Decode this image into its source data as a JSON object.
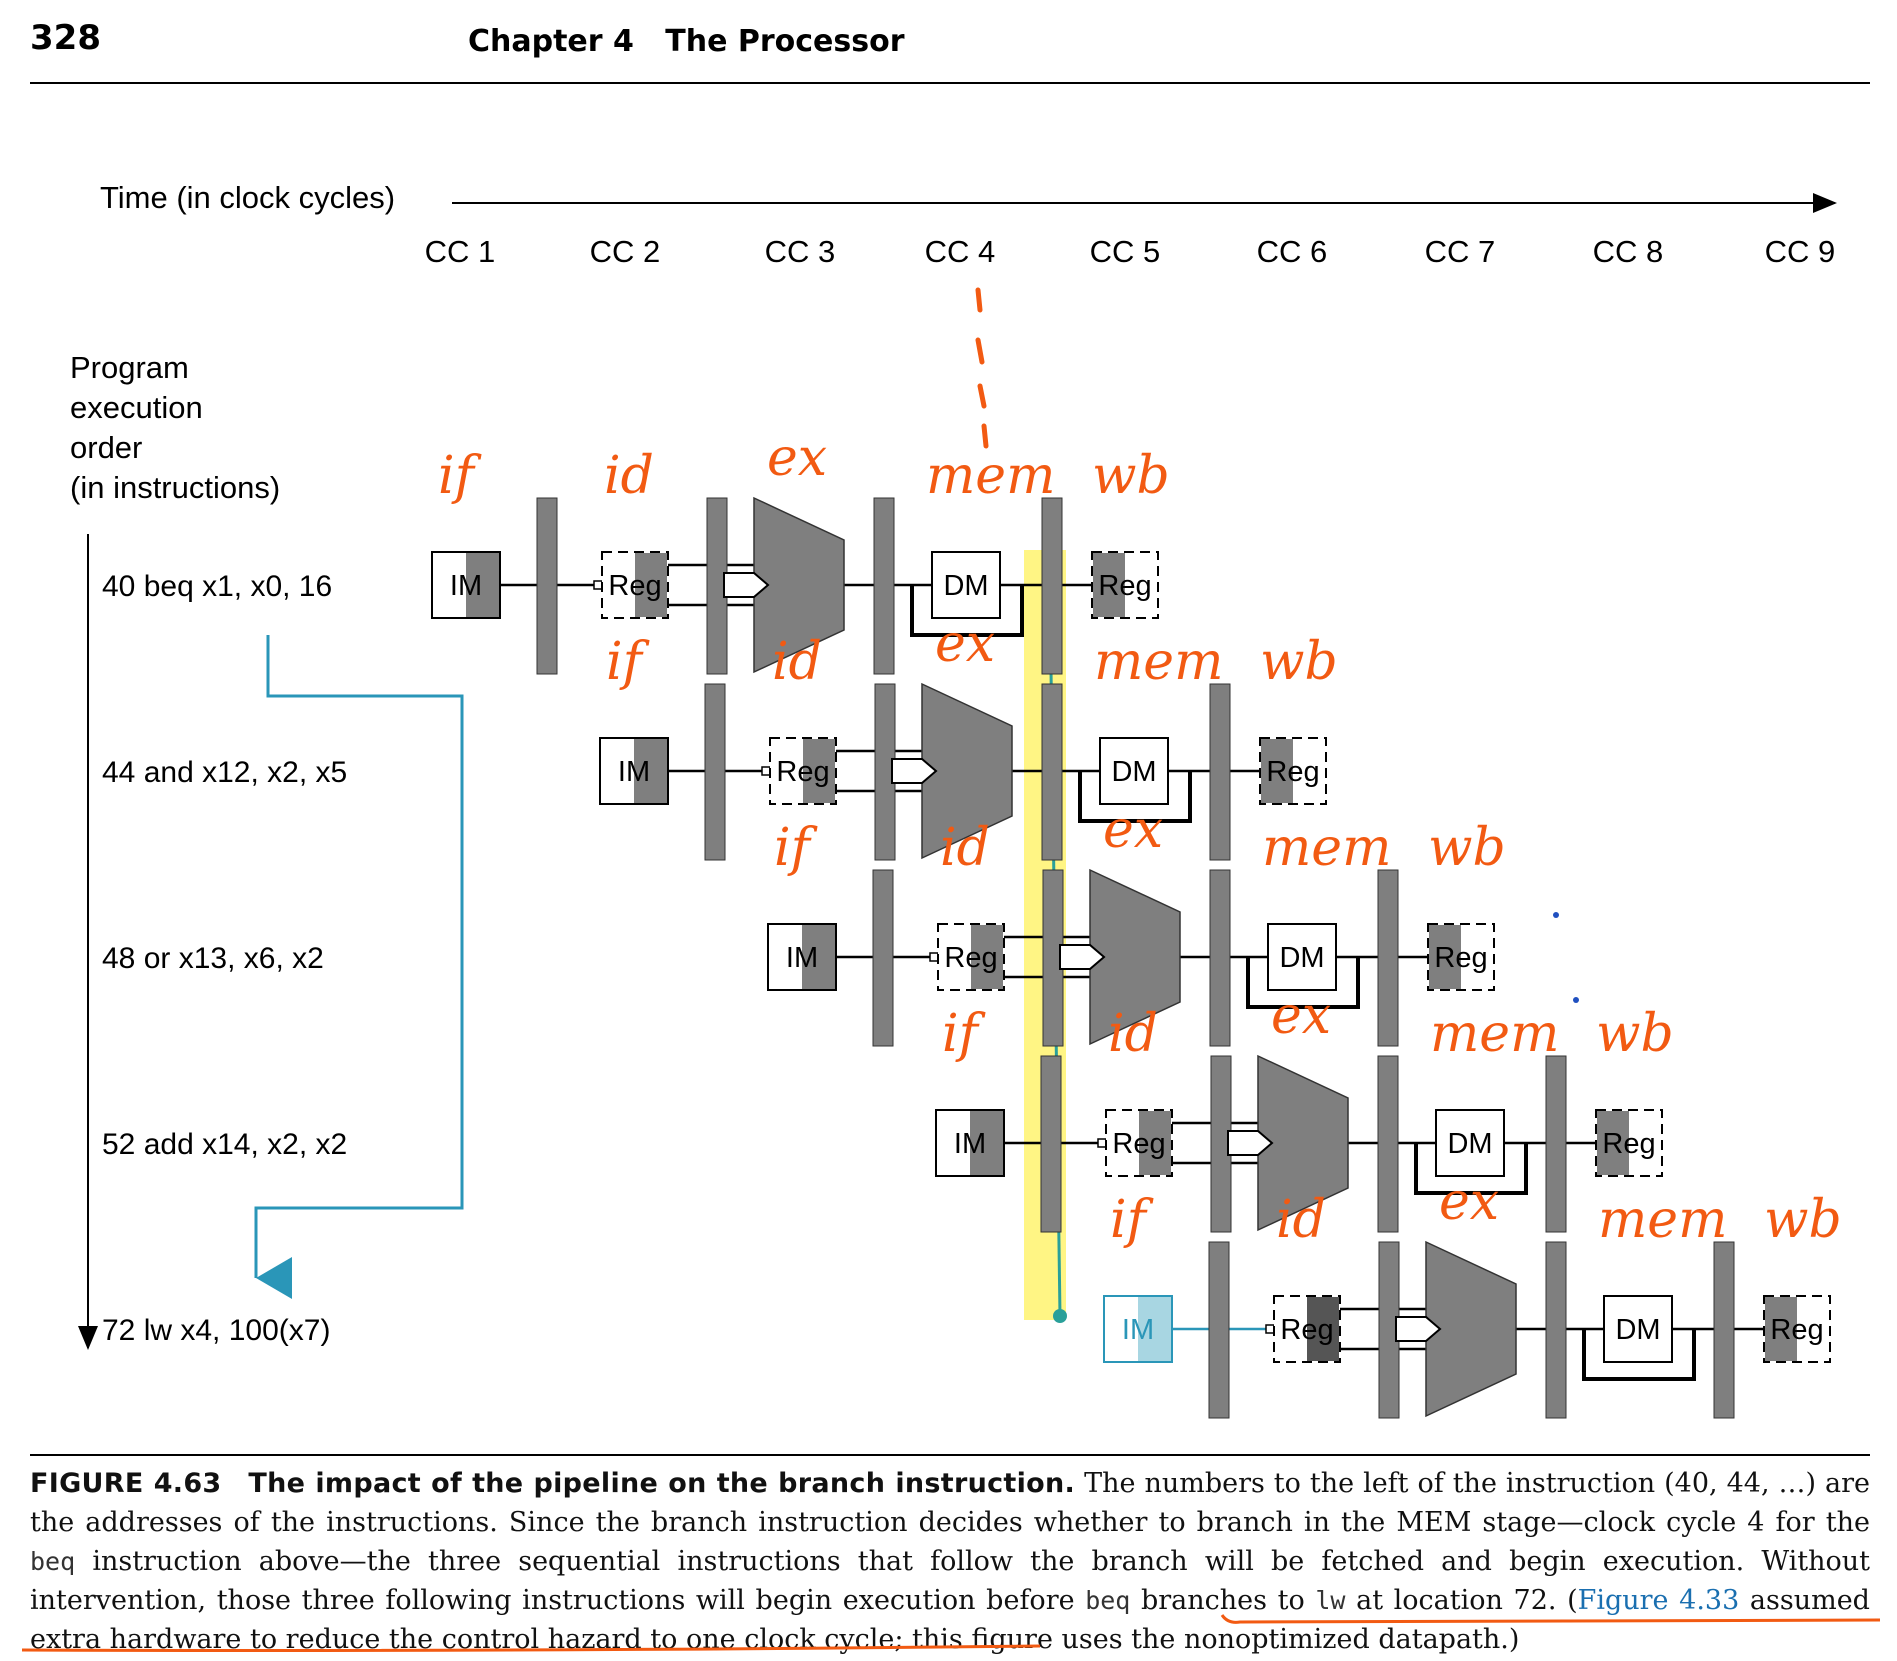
{
  "header": {
    "page_number": "328",
    "chapter": "Chapter 4",
    "chapter_title": "The Processor"
  },
  "figure": {
    "time_label": "Time (in clock cycles)",
    "cycles": [
      "CC 1",
      "CC 2",
      "CC 3",
      "CC 4",
      "CC 5",
      "CC 6",
      "CC 7",
      "CC 8",
      "CC 9"
    ],
    "order_label": [
      "Program",
      "execution",
      "order",
      "(in instructions)"
    ],
    "instructions": [
      "40 beq x1, x0, 16",
      "44 and x12, x2, x5",
      "48 or x13, x6, x2",
      "52 add x14, x2, x2",
      "72 lw x4, 100(x7)"
    ],
    "stage_labels": {
      "im": "IM",
      "reg": "Reg",
      "dm": "DM"
    },
    "handwritten": {
      "if": "if",
      "id": "id",
      "ex": "ex",
      "mem": "mem",
      "wb": "wb"
    },
    "colors": {
      "stage_gray": "#7f7f7f",
      "branch_arrow": "#2a96b8",
      "highlight": "#fff36e",
      "annotation": "#f25a12",
      "branch_target": "#2aa09a"
    }
  },
  "caption": {
    "figure_label": "FIGURE 4.63",
    "figure_title": "The impact of the pipeline on the branch instruction.",
    "text_1": "The numbers to the left of the instruction (40, 44, …) are the addresses of the instructions. Since the branch instruction decides whether to branch in the MEM stage—clock cycle 4 for the",
    "code_1": "beq",
    "text_2": "instruction above—the three sequential instructions that follow the branch will be fetched and begin execution. Without intervention, those three following instructions will begin execution before",
    "code_2": "beq",
    "text_3": "branches to",
    "code_3": "lw",
    "text_4": "at location 72. (",
    "link": "Figure 4.33",
    "text_5": "assumed extra hardware to reduce the control hazard to one clock cycle; this figure uses the nonoptimized datapath.)"
  }
}
